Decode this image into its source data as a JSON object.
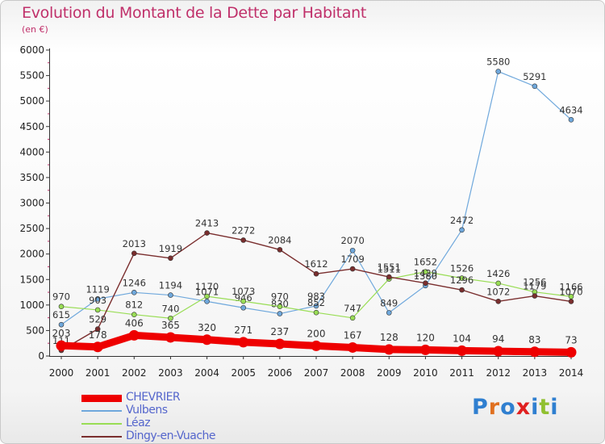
{
  "header": {
    "title": "Evolution du Montant de la Dette par Habitant",
    "unit": "(en €)"
  },
  "brand": {
    "text": "Proxiti",
    "letter_colors": [
      "#2f7fd0",
      "#e07020",
      "#2f7fd0",
      "#e02020",
      "#2f7fd0",
      "#90c030",
      "#2f7fd0"
    ]
  },
  "colors": {
    "CHEVRIER": "#ee0000",
    "Vulbens": "#6fa8dc",
    "Léaz": "#99dd55",
    "Dingy-en-Vuache": "#7a2e2e",
    "axis_text": "#222222",
    "legend_text": "#5566cc",
    "title": "#c0306a"
  },
  "chart_data": {
    "type": "line",
    "title": "Evolution du Montant de la Dette par Habitant",
    "subtitle": "(en €)",
    "x": [
      "2000",
      "2001",
      "2002",
      "2003",
      "2004",
      "2005",
      "2006",
      "2007",
      "2008",
      "2009",
      "2010",
      "2011",
      "2012",
      "2013",
      "2014"
    ],
    "ylim": [
      0,
      6000
    ],
    "yticks": [
      0,
      500,
      1000,
      1500,
      2000,
      2500,
      3000,
      3500,
      4000,
      4500,
      5000,
      5500,
      6000
    ],
    "grid": false,
    "legend_position": "bottom-left",
    "series": [
      {
        "name": "Vulbens",
        "values": [
          615,
          1119,
          1246,
          1194,
          1071,
          946,
          830,
          983,
          2070,
          849,
          1380,
          2472,
          5580,
          5291,
          4634
        ]
      },
      {
        "name": "Léaz",
        "values": [
          970,
          903,
          812,
          740,
          1170,
          1073,
          970,
          852,
          747,
          1511,
          1652,
          1526,
          1426,
          1256,
          1166
        ]
      },
      {
        "name": "Dingy-en-Vuache",
        "values": [
          111,
          529,
          2013,
          1919,
          2413,
          2272,
          2084,
          1612,
          1709,
          1551,
          1429,
          1296,
          1072,
          1179,
          1070
        ]
      },
      {
        "name": "CHEVRIER",
        "values": [
          203,
          178,
          406,
          365,
          320,
          271,
          237,
          200,
          167,
          128,
          120,
          104,
          94,
          83,
          73
        ]
      }
    ]
  }
}
